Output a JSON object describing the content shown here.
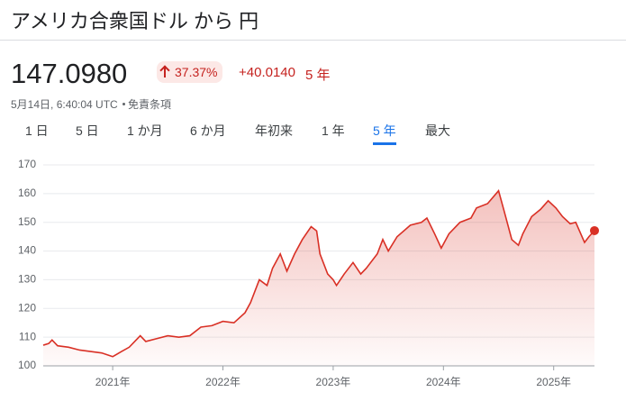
{
  "header": {
    "title": "アメリカ合衆国ドル から 円"
  },
  "quote": {
    "price": "147.0980",
    "change_pct": "37.37%",
    "change_abs": "+40.0140",
    "period": "5 年",
    "timestamp": "5月14日, 6:40:04 UTC",
    "disclaimer": "免責条項"
  },
  "tabs": {
    "items": [
      "1 日",
      "5 日",
      "1 か月",
      "6 か月",
      "年初来",
      "1 年",
      "5 年",
      "最大"
    ],
    "selected": 6
  },
  "chart_data": {
    "type": "line",
    "color": "#d93025",
    "grid": true,
    "x": [
      2020.37,
      2020.42,
      2020.45,
      2020.5,
      2020.6,
      2020.7,
      2020.8,
      2020.9,
      2021.0,
      2021.08,
      2021.15,
      2021.25,
      2021.3,
      2021.4,
      2021.5,
      2021.6,
      2021.7,
      2021.8,
      2021.9,
      2022.0,
      2022.1,
      2022.2,
      2022.25,
      2022.33,
      2022.4,
      2022.45,
      2022.52,
      2022.58,
      2022.65,
      2022.72,
      2022.8,
      2022.85,
      2022.88,
      2022.95,
      2023.0,
      2023.03,
      2023.1,
      2023.18,
      2023.25,
      2023.3,
      2023.4,
      2023.45,
      2023.5,
      2023.58,
      2023.7,
      2023.8,
      2023.85,
      2023.92,
      2023.98,
      2024.05,
      2024.15,
      2024.25,
      2024.3,
      2024.4,
      2024.5,
      2024.55,
      2024.62,
      2024.68,
      2024.72,
      2024.8,
      2024.88,
      2024.95,
      2025.02,
      2025.08,
      2025.15,
      2025.2,
      2025.28,
      2025.32,
      2025.37
    ],
    "values": [
      107.2,
      107.8,
      109,
      107,
      106.5,
      105.5,
      105,
      104.5,
      103.2,
      105,
      106.5,
      110.5,
      108.5,
      109.5,
      110.5,
      110,
      110.5,
      113.5,
      114,
      115.5,
      115,
      118.5,
      122,
      130,
      128,
      134,
      139,
      133,
      139,
      144,
      148.5,
      147,
      139,
      132,
      130,
      128,
      132,
      136,
      132,
      134,
      139,
      144,
      140,
      145,
      149,
      150,
      151.5,
      146,
      141,
      146,
      150,
      151.5,
      155,
      156.5,
      161,
      154,
      144,
      142,
      146,
      152,
      154.5,
      157.5,
      155,
      152,
      149.5,
      150,
      143,
      145,
      147.1
    ],
    "xlim": [
      2020.37,
      2025.37
    ],
    "xticks": [
      {
        "value": 2021,
        "label": "2021年"
      },
      {
        "value": 2022,
        "label": "2022年"
      },
      {
        "value": 2023,
        "label": "2023年"
      },
      {
        "value": 2024,
        "label": "2024年"
      },
      {
        "value": 2025,
        "label": "2025年"
      }
    ],
    "ylim": [
      100,
      170
    ],
    "yticks": [
      100,
      110,
      120,
      130,
      140,
      150,
      160,
      170
    ]
  }
}
